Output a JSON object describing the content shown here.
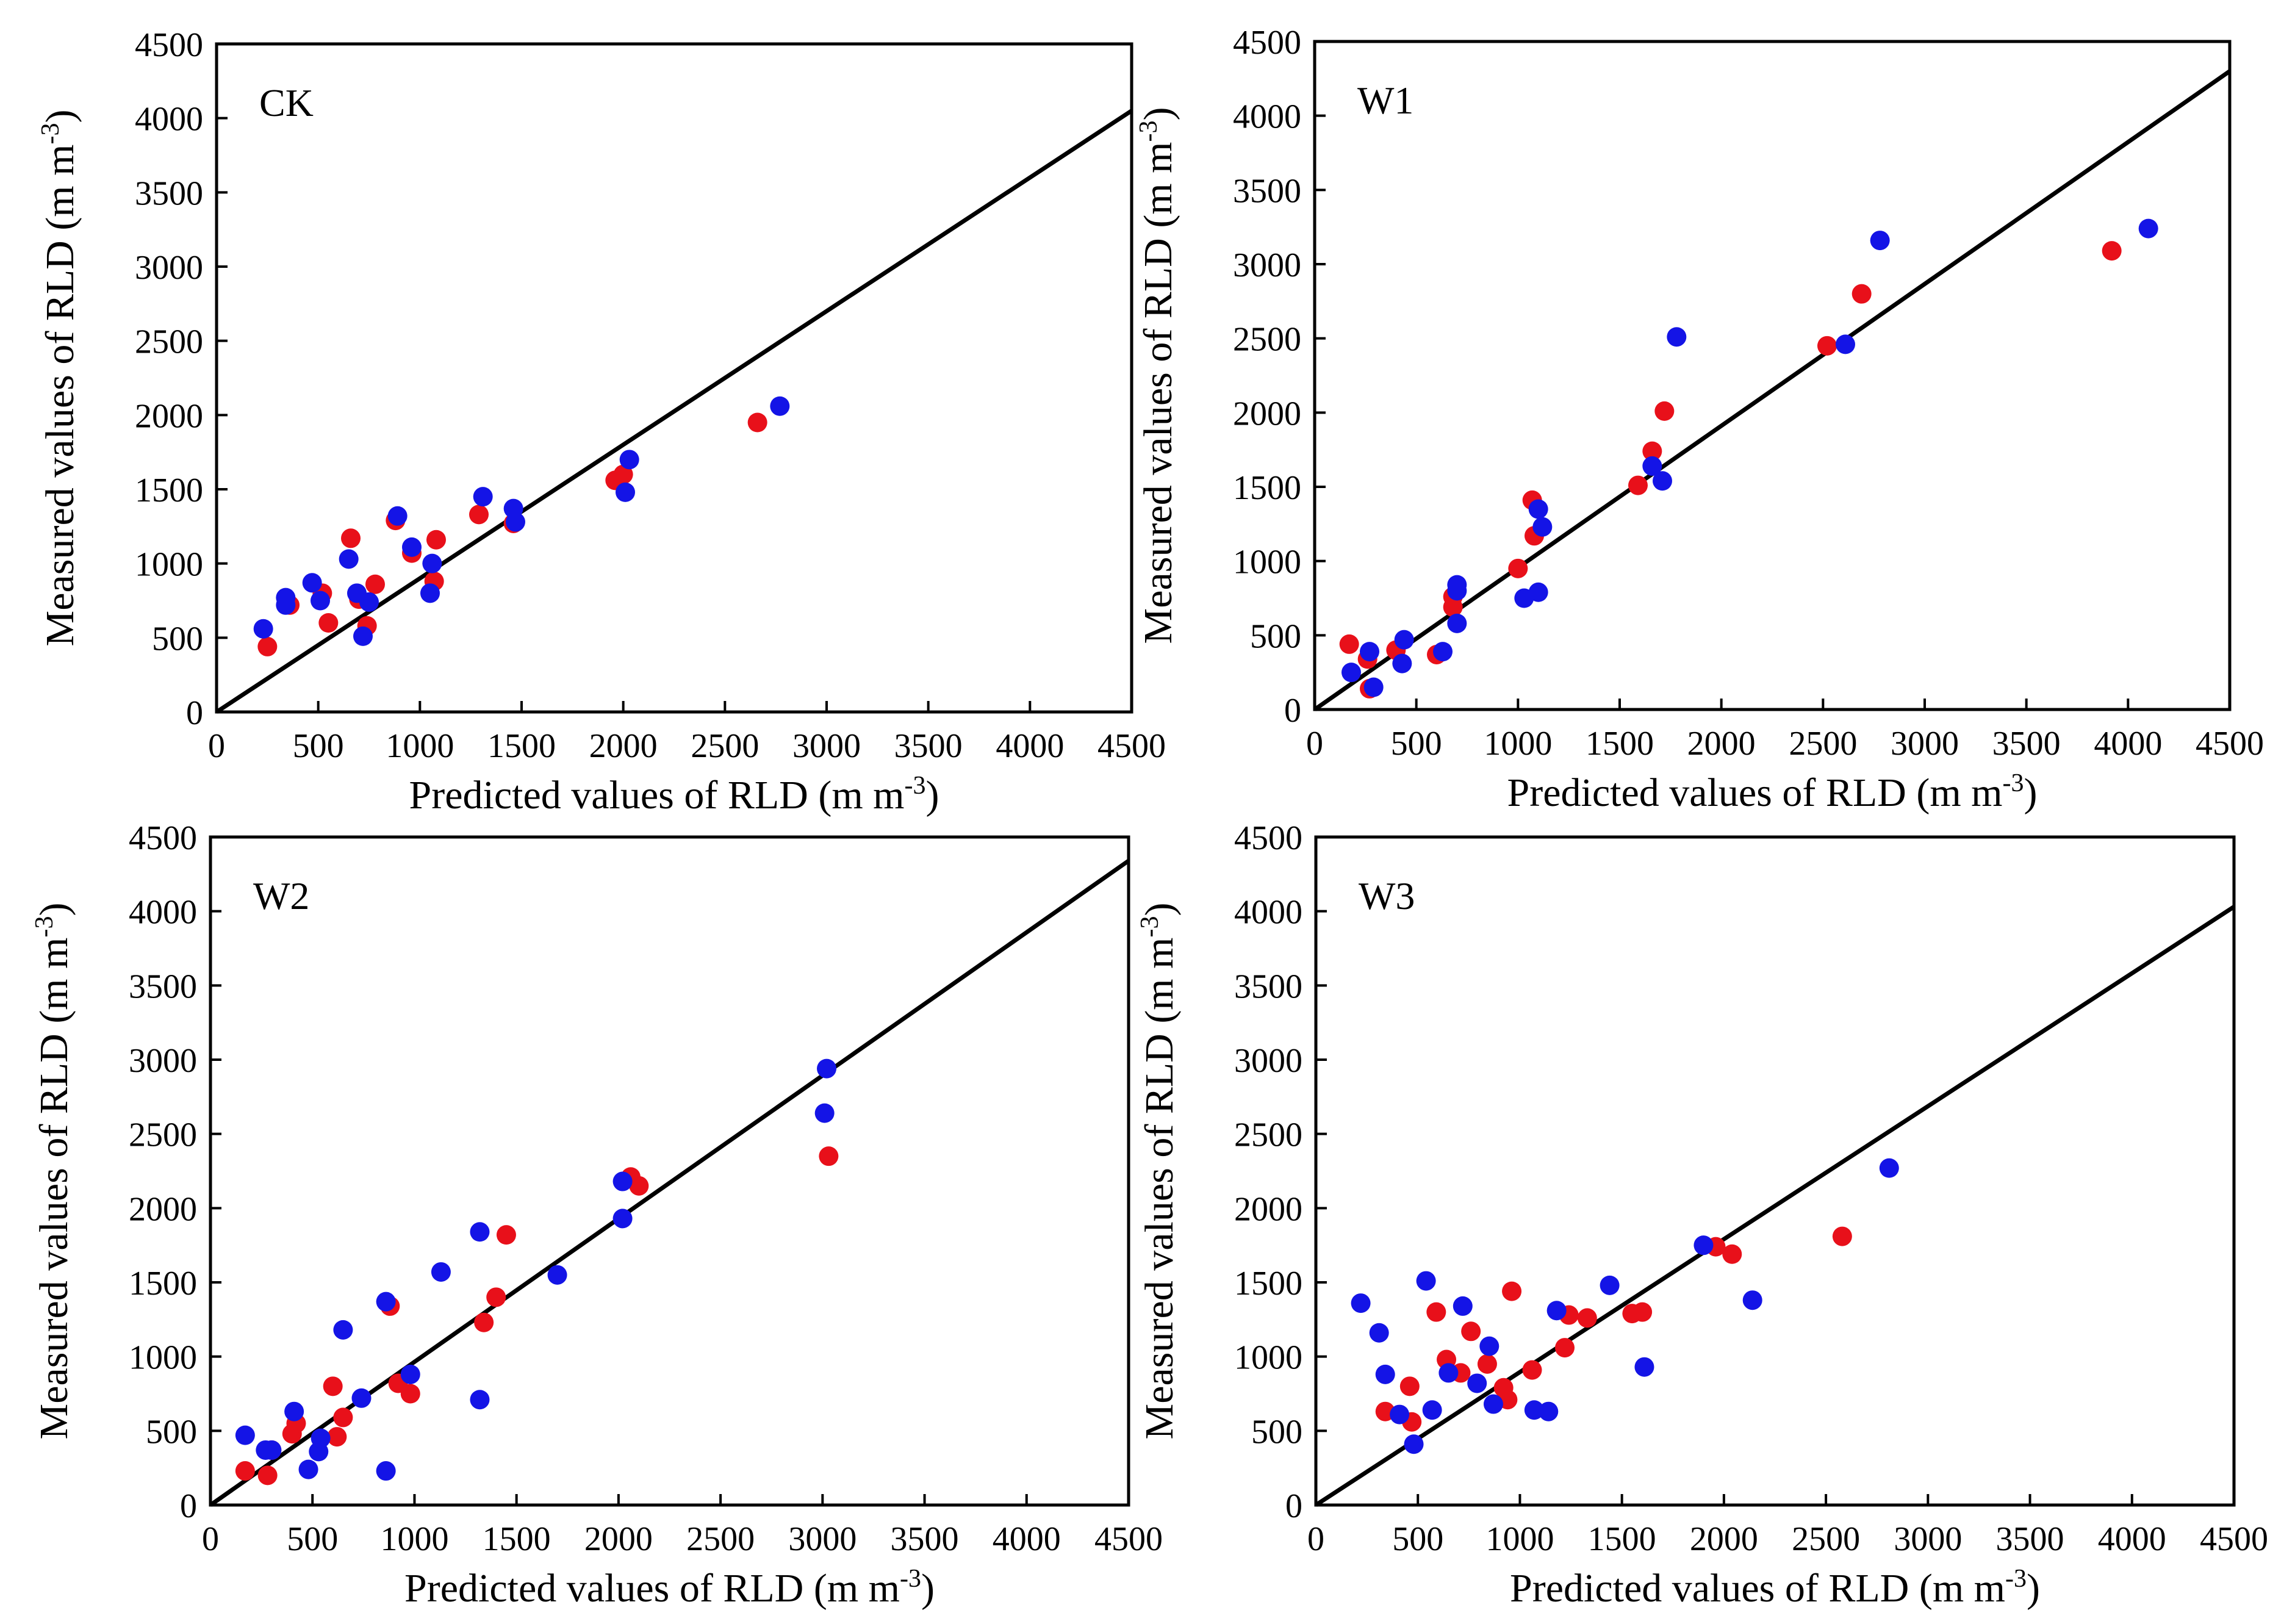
{
  "figure": {
    "colors": {
      "series_red": "#e8101a",
      "series_blue": "#1414e6",
      "axis": "#000000"
    }
  },
  "chart_data": [
    {
      "type": "scatter",
      "panel_label": "CK",
      "xlabel": {
        "text": "Predicted  values of RLD (m m",
        "superscript": "-3",
        "suffix": ")"
      },
      "ylabel": {
        "text": "Measured values of RLD (m m",
        "superscript": "-3",
        "suffix": ")"
      },
      "xlim": [
        0,
        4500
      ],
      "ylim": [
        0,
        4500
      ],
      "xticks": [
        "0",
        "500",
        "1000",
        "1500",
        "2000",
        "2500",
        "3000",
        "3500",
        "4000",
        "4500"
      ],
      "yticks": [
        "0",
        "500",
        "1000",
        "1500",
        "2000",
        "2500",
        "3000",
        "3500",
        "4000",
        "4500"
      ],
      "grid": false,
      "fit_line": {
        "x": [
          0,
          4500
        ],
        "y": [
          0,
          4050
        ]
      },
      "series": [
        {
          "color": "#e8101a",
          "points": [
            [
              250,
              440
            ],
            [
              360,
              720
            ],
            [
              520,
              800
            ],
            [
              550,
              600
            ],
            [
              660,
              1170
            ],
            [
              700,
              760
            ],
            [
              740,
              580
            ],
            [
              780,
              860
            ],
            [
              880,
              1290
            ],
            [
              960,
              1070
            ],
            [
              1070,
              880
            ],
            [
              1080,
              1160
            ],
            [
              1290,
              1330
            ],
            [
              1460,
              1270
            ],
            [
              1960,
              1560
            ],
            [
              2000,
              1600
            ],
            [
              2660,
              1950
            ]
          ]
        },
        {
          "color": "#1414e6",
          "points": [
            [
              230,
              560
            ],
            [
              340,
              720
            ],
            [
              340,
              770
            ],
            [
              470,
              870
            ],
            [
              510,
              750
            ],
            [
              650,
              1030
            ],
            [
              690,
              800
            ],
            [
              720,
              510
            ],
            [
              750,
              740
            ],
            [
              890,
              1320
            ],
            [
              960,
              1110
            ],
            [
              1050,
              800
            ],
            [
              1060,
              1000
            ],
            [
              1310,
              1450
            ],
            [
              1460,
              1370
            ],
            [
              1470,
              1280
            ],
            [
              2010,
              1480
            ],
            [
              2030,
              1700
            ],
            [
              2770,
              2060
            ]
          ]
        }
      ]
    },
    {
      "type": "scatter",
      "panel_label": "W1",
      "xlabel": {
        "text": "Predicted  values of RLD (m m",
        "superscript": "-3",
        "suffix": ")"
      },
      "ylabel": {
        "text": "Measured values of RLD (m m",
        "superscript": "-3",
        "suffix": ")"
      },
      "xlim": [
        0,
        4500
      ],
      "ylim": [
        0,
        4500
      ],
      "xticks": [
        "0",
        "500",
        "1000",
        "1500",
        "2000",
        "2500",
        "3000",
        "3500",
        "4000",
        "4500"
      ],
      "yticks": [
        "0",
        "500",
        "1000",
        "1500",
        "2000",
        "2500",
        "3000",
        "3500",
        "4000",
        "4500"
      ],
      "grid": false,
      "fit_line": {
        "x": [
          0,
          4500
        ],
        "y": [
          0,
          4300
        ]
      },
      "series": [
        {
          "color": "#e8101a",
          "points": [
            [
              170,
              440
            ],
            [
              260,
              340
            ],
            [
              270,
              140
            ],
            [
              400,
              400
            ],
            [
              600,
              370
            ],
            [
              680,
              760
            ],
            [
              680,
              690
            ],
            [
              1000,
              950
            ],
            [
              1070,
              1410
            ],
            [
              1080,
              1170
            ],
            [
              1590,
              1510
            ],
            [
              1660,
              1740
            ],
            [
              1720,
              2010
            ],
            [
              2520,
              2450
            ],
            [
              2690,
              2800
            ],
            [
              3920,
              3090
            ]
          ]
        },
        {
          "color": "#1414e6",
          "points": [
            [
              180,
              250
            ],
            [
              270,
              390
            ],
            [
              290,
              150
            ],
            [
              430,
              310
            ],
            [
              440,
              470
            ],
            [
              630,
              390
            ],
            [
              700,
              800
            ],
            [
              700,
              840
            ],
            [
              700,
              580
            ],
            [
              1030,
              750
            ],
            [
              1100,
              1350
            ],
            [
              1100,
              790
            ],
            [
              1120,
              1230
            ],
            [
              1660,
              1640
            ],
            [
              1710,
              1540
            ],
            [
              1780,
              2510
            ],
            [
              2610,
              2460
            ],
            [
              2780,
              3160
            ],
            [
              4100,
              3240
            ]
          ]
        }
      ]
    },
    {
      "type": "scatter",
      "panel_label": "W2",
      "xlabel": {
        "text": "Predicted  values of RLD (m m",
        "superscript": "-3",
        "suffix": ")"
      },
      "ylabel": {
        "text": "Measured values of RLD (m m",
        "superscript": "-3",
        "suffix": ")"
      },
      "xlim": [
        0,
        4500
      ],
      "ylim": [
        0,
        4500
      ],
      "xticks": [
        "0",
        "500",
        "1000",
        "1500",
        "2000",
        "2500",
        "3000",
        "3500",
        "4000",
        "4500"
      ],
      "yticks": [
        "0",
        "500",
        "1000",
        "1500",
        "2000",
        "2500",
        "3000",
        "3500",
        "4000",
        "4500"
      ],
      "grid": false,
      "fit_line": {
        "x": [
          0,
          4500
        ],
        "y": [
          0,
          4340
        ]
      },
      "series": [
        {
          "color": "#e8101a",
          "points": [
            [
              170,
              230
            ],
            [
              280,
              200
            ],
            [
              300,
              370
            ],
            [
              400,
              480
            ],
            [
              420,
              550
            ],
            [
              600,
              800
            ],
            [
              620,
              460
            ],
            [
              650,
              590
            ],
            [
              880,
              1340
            ],
            [
              920,
              820
            ],
            [
              980,
              750
            ],
            [
              1340,
              1230
            ],
            [
              1400,
              1400
            ],
            [
              1450,
              1820
            ],
            [
              2060,
              2210
            ],
            [
              2100,
              2150
            ],
            [
              3030,
              2350
            ]
          ]
        },
        {
          "color": "#1414e6",
          "points": [
            [
              170,
              470
            ],
            [
              270,
              370
            ],
            [
              300,
              370
            ],
            [
              410,
              630
            ],
            [
              480,
              240
            ],
            [
              530,
              360
            ],
            [
              540,
              450
            ],
            [
              650,
              1180
            ],
            [
              740,
              720
            ],
            [
              860,
              230
            ],
            [
              860,
              1370
            ],
            [
              980,
              880
            ],
            [
              1130,
              1570
            ],
            [
              1320,
              1840
            ],
            [
              1320,
              710
            ],
            [
              1700,
              1550
            ],
            [
              2020,
              1930
            ],
            [
              2020,
              2180
            ],
            [
              3010,
              2640
            ],
            [
              3020,
              2940
            ]
          ]
        }
      ]
    },
    {
      "type": "scatter",
      "panel_label": "W3",
      "xlabel": {
        "text": "Predicted  values of RLD (m m",
        "superscript": "-3",
        "suffix": ")"
      },
      "ylabel": {
        "text": "Measured values of RLD (m m",
        "superscript": "-3",
        "suffix": ")"
      },
      "xlim": [
        0,
        4500
      ],
      "ylim": [
        0,
        4500
      ],
      "xticks": [
        "0",
        "500",
        "1000",
        "1500",
        "2000",
        "2500",
        "3000",
        "3500",
        "4000",
        "4500"
      ],
      "yticks": [
        "0",
        "500",
        "1000",
        "1500",
        "2000",
        "2500",
        "3000",
        "3500",
        "4000",
        "4500"
      ],
      "grid": false,
      "fit_line": {
        "x": [
          0,
          4500
        ],
        "y": [
          0,
          4030
        ]
      },
      "series": [
        {
          "color": "#e8101a",
          "points": [
            [
              340,
              630
            ],
            [
              460,
              800
            ],
            [
              470,
              560
            ],
            [
              590,
              1300
            ],
            [
              640,
              980
            ],
            [
              710,
              890
            ],
            [
              760,
              1170
            ],
            [
              840,
              950
            ],
            [
              920,
              790
            ],
            [
              940,
              710
            ],
            [
              960,
              1440
            ],
            [
              1060,
              910
            ],
            [
              1220,
              1060
            ],
            [
              1240,
              1280
            ],
            [
              1330,
              1260
            ],
            [
              1550,
              1290
            ],
            [
              1600,
              1300
            ],
            [
              1960,
              1740
            ],
            [
              2040,
              1690
            ],
            [
              2580,
              1810
            ]
          ]
        },
        {
          "color": "#1414e6",
          "points": [
            [
              220,
              1360
            ],
            [
              310,
              1160
            ],
            [
              340,
              880
            ],
            [
              410,
              610
            ],
            [
              480,
              410
            ],
            [
              540,
              1510
            ],
            [
              570,
              640
            ],
            [
              650,
              890
            ],
            [
              720,
              1340
            ],
            [
              790,
              820
            ],
            [
              850,
              1070
            ],
            [
              870,
              680
            ],
            [
              1070,
              640
            ],
            [
              1140,
              630
            ],
            [
              1180,
              1310
            ],
            [
              1440,
              1480
            ],
            [
              1610,
              930
            ],
            [
              1900,
              1750
            ],
            [
              2140,
              1380
            ],
            [
              2810,
              2270
            ]
          ]
        }
      ]
    }
  ]
}
